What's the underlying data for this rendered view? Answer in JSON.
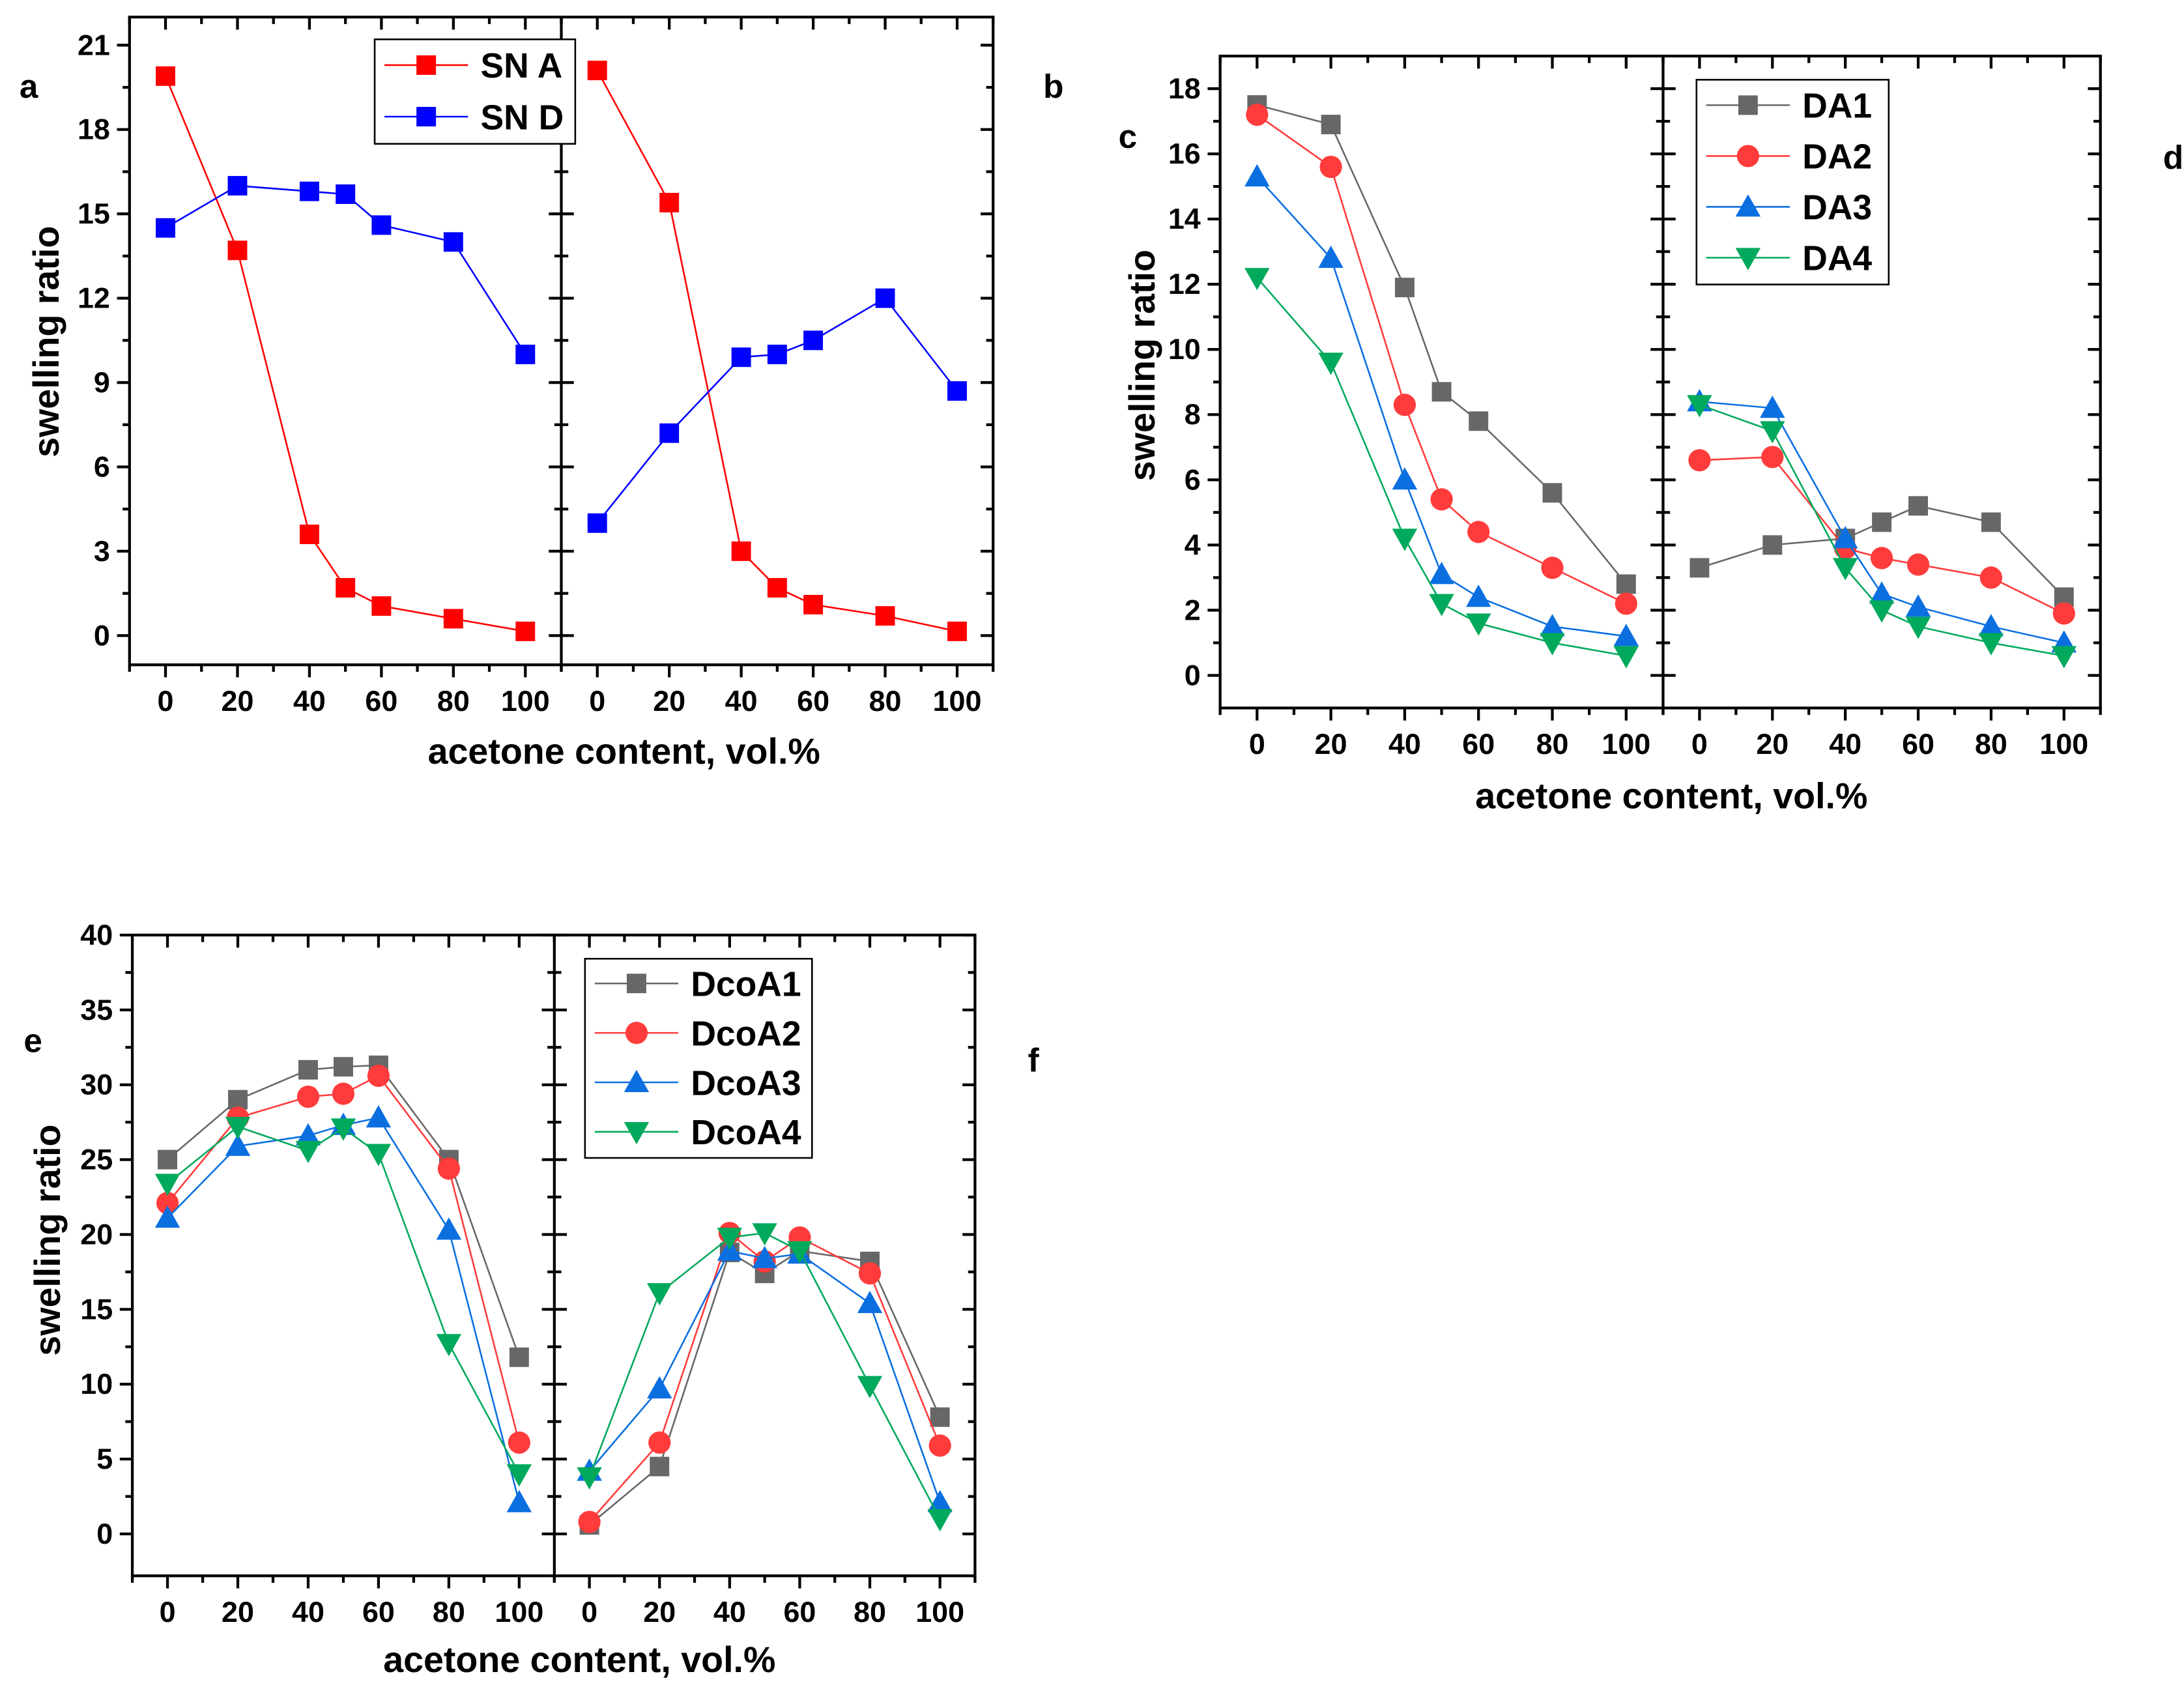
{
  "colors": {
    "sn_a": "#ff0000",
    "sn_d": "#0000ff",
    "grey": "#676767",
    "red": "#ff3b3b",
    "blue": "#0b6fe0",
    "green": "#00a95c"
  },
  "chart_data": [
    {
      "type": "line",
      "panel_label": "a",
      "xlabel": "acetone content, vol.%",
      "ylabel": "swelling ratio",
      "x": [
        0,
        20,
        40,
        50,
        60,
        80,
        100
      ],
      "xlim": [
        -10,
        110
      ],
      "xticks": [
        "0",
        "20",
        "40",
        "60",
        "80",
        "100"
      ],
      "ylim": [
        -1.04,
        22
      ],
      "yticks": [
        "0",
        "3",
        "6",
        "9",
        "12",
        "15",
        "18",
        "21"
      ],
      "legend": "top-right",
      "series": [
        {
          "name": "SN A",
          "marker": "square",
          "color": "sn_a",
          "values": [
            19.9,
            13.7,
            3.6,
            1.7,
            1.05,
            0.6,
            0.15
          ]
        },
        {
          "name": "SN D",
          "marker": "square",
          "color": "sn_d",
          "values": [
            14.5,
            16.0,
            15.8,
            15.7,
            14.6,
            14.0,
            10.0
          ]
        }
      ]
    },
    {
      "type": "line",
      "panel_label": "b",
      "xlabel": "",
      "ylabel": "",
      "x": [
        0,
        20,
        40,
        50,
        60,
        80,
        100
      ],
      "xlim": [
        -10,
        110
      ],
      "xticks": [
        "0",
        "20",
        "40",
        "60",
        "80",
        "100"
      ],
      "ylim": [
        -1.04,
        22
      ],
      "yticks": [],
      "legend": "none",
      "series": [
        {
          "name": "SN A",
          "marker": "square",
          "color": "sn_a",
          "values": [
            20.1,
            15.4,
            3.0,
            1.7,
            1.1,
            0.7,
            0.15
          ]
        },
        {
          "name": "SN D",
          "marker": "square",
          "color": "sn_d",
          "values": [
            4.0,
            7.2,
            9.9,
            10.0,
            10.5,
            12.0,
            8.7
          ]
        }
      ]
    },
    {
      "type": "line",
      "panel_label": "c",
      "xlabel": "acetone content, vol.%",
      "ylabel": "swelling ratio",
      "x": [
        0,
        20,
        40,
        50,
        60,
        80,
        100
      ],
      "xlim": [
        -10,
        110
      ],
      "xticks": [
        "0",
        "20",
        "40",
        "60",
        "80",
        "100"
      ],
      "ylim": [
        -1,
        19
      ],
      "yticks": [
        "0",
        "2",
        "4",
        "6",
        "8",
        "10",
        "12",
        "14",
        "16",
        "18"
      ],
      "legend": "none",
      "series": [
        {
          "name": "DA1",
          "marker": "square",
          "color": "grey",
          "values": [
            17.5,
            16.9,
            11.9,
            8.7,
            7.8,
            5.6,
            2.8
          ]
        },
        {
          "name": "DA2",
          "marker": "circle",
          "color": "red",
          "values": [
            17.2,
            15.6,
            8.3,
            5.4,
            4.4,
            3.3,
            2.2
          ]
        },
        {
          "name": "DA3",
          "marker": "triangle-up",
          "color": "blue",
          "values": [
            15.3,
            12.8,
            6.0,
            3.1,
            2.4,
            1.5,
            1.2
          ]
        },
        {
          "name": "DA4",
          "marker": "triangle-down",
          "color": "green",
          "values": [
            12.2,
            9.6,
            4.2,
            2.2,
            1.6,
            1.0,
            0.6
          ]
        }
      ]
    },
    {
      "type": "line",
      "panel_label": "d",
      "xlabel": "",
      "ylabel": "",
      "x": [
        0,
        20,
        40,
        50,
        60,
        80,
        100
      ],
      "xlim": [
        -10,
        110
      ],
      "xticks": [
        "0",
        "20",
        "40",
        "60",
        "80",
        "100"
      ],
      "ylim": [
        -1,
        19
      ],
      "yticks": [],
      "legend": "top-left",
      "series": [
        {
          "name": "DA1",
          "marker": "square",
          "color": "grey",
          "values": [
            3.3,
            4.0,
            4.2,
            4.7,
            5.2,
            4.7,
            2.4
          ]
        },
        {
          "name": "DA2",
          "marker": "circle",
          "color": "red",
          "values": [
            6.6,
            6.7,
            3.9,
            3.6,
            3.4,
            3.0,
            1.9
          ]
        },
        {
          "name": "DA3",
          "marker": "triangle-up",
          "color": "blue",
          "values": [
            8.4,
            8.2,
            4.2,
            2.5,
            2.1,
            1.5,
            1.0
          ]
        },
        {
          "name": "DA4",
          "marker": "triangle-down",
          "color": "green",
          "values": [
            8.3,
            7.5,
            3.3,
            2.0,
            1.5,
            1.0,
            0.6
          ]
        }
      ]
    },
    {
      "type": "line",
      "panel_label": "e",
      "xlabel": "acetone content, vol.%",
      "ylabel": "swelling ratio",
      "x": [
        0,
        20,
        40,
        50,
        60,
        80,
        100
      ],
      "xlim": [
        -10,
        110
      ],
      "xticks": [
        "0",
        "20",
        "40",
        "60",
        "80",
        "100"
      ],
      "ylim": [
        -2.8,
        40
      ],
      "yticks": [
        "0",
        "5",
        "10",
        "15",
        "20",
        "25",
        "30",
        "35",
        "40"
      ],
      "legend": "none",
      "series": [
        {
          "name": "DcoA1",
          "marker": "square",
          "color": "grey",
          "values": [
            25.0,
            29.0,
            31.0,
            31.2,
            31.3,
            25.0,
            11.8
          ]
        },
        {
          "name": "DcoA2",
          "marker": "circle",
          "color": "red",
          "values": [
            22.1,
            27.8,
            29.2,
            29.4,
            30.6,
            24.4,
            6.1
          ]
        },
        {
          "name": "DcoA3",
          "marker": "triangle-up",
          "color": "blue",
          "values": [
            21.1,
            25.9,
            26.6,
            27.3,
            27.8,
            20.3,
            2.1
          ]
        },
        {
          "name": "DcoA4",
          "marker": "triangle-down",
          "color": "green",
          "values": [
            23.4,
            27.2,
            25.6,
            27.1,
            25.4,
            12.7,
            4.0
          ]
        }
      ]
    },
    {
      "type": "line",
      "panel_label": "f",
      "xlabel": "",
      "ylabel": "",
      "x": [
        0,
        20,
        40,
        50,
        60,
        80,
        100
      ],
      "xlim": [
        -10,
        110
      ],
      "xticks": [
        "0",
        "20",
        "40",
        "60",
        "80",
        "100"
      ],
      "ylim": [
        -2.8,
        40
      ],
      "yticks": [],
      "legend": "top-left",
      "series": [
        {
          "name": "DcoA1",
          "marker": "square",
          "color": "grey",
          "values": [
            0.6,
            4.5,
            18.8,
            17.4,
            18.9,
            18.2,
            7.8
          ]
        },
        {
          "name": "DcoA2",
          "marker": "circle",
          "color": "red",
          "values": [
            0.8,
            6.1,
            20.1,
            18.2,
            19.8,
            17.4,
            5.9
          ]
        },
        {
          "name": "DcoA3",
          "marker": "triangle-up",
          "color": "blue",
          "values": [
            4.2,
            9.7,
            18.9,
            18.4,
            18.7,
            15.4,
            2.1
          ]
        },
        {
          "name": "DcoA4",
          "marker": "triangle-down",
          "color": "green",
          "values": [
            3.8,
            16.1,
            19.8,
            20.1,
            18.9,
            9.9,
            1.0
          ]
        }
      ]
    }
  ]
}
